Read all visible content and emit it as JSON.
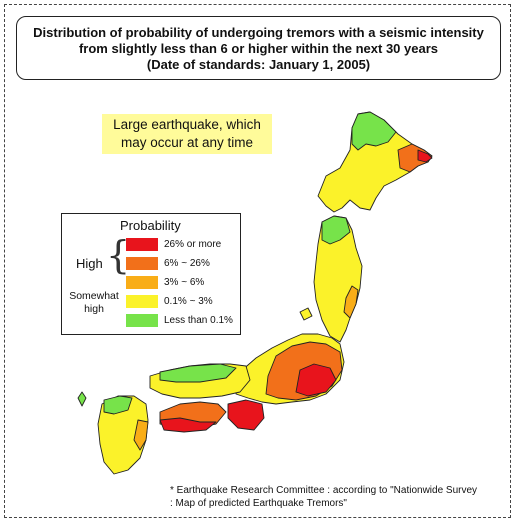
{
  "title": {
    "line1": "Distribution of probability of undergoing tremors with a seismic intensity",
    "line2": "from slightly less than 6 or higher within the next 30 years",
    "line3": "(Date of standards: January 1, 2005)"
  },
  "callout": {
    "line1": "Large earthquake, which",
    "line2": "may occur at any time"
  },
  "legend": {
    "title": "Probability",
    "high_label": "High",
    "somewhat_high_line1": "Somewhat",
    "somewhat_high_line2": "high",
    "items": [
      {
        "label": "26% or more",
        "color": "#e8141c"
      },
      {
        "label": "6% ~ 26%",
        "color": "#f2701a"
      },
      {
        "label": "3% ~ 6%",
        "color": "#f9ad17"
      },
      {
        "label": "0.1% ~ 3%",
        "color": "#fbf22a"
      },
      {
        "label": "Less than 0.1%",
        "color": "#77e34a"
      }
    ]
  },
  "footnote": {
    "line1": "* Earthquake Research Committee : according to \"Nationwide Survey",
    "line2": ": Map of predicted Earthquake Tremors\""
  }
}
